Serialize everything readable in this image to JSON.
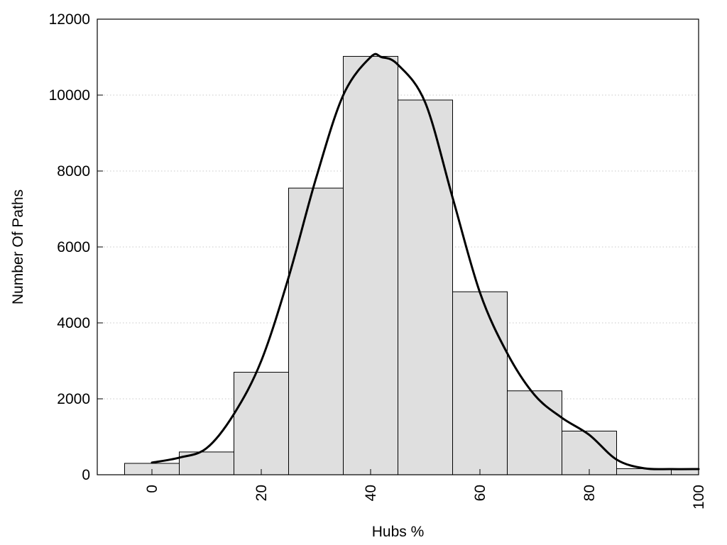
{
  "chart_data": {
    "type": "bar",
    "title": "",
    "xlabel": "Hubs %",
    "ylabel": "Number Of Paths",
    "xlim": [
      -10,
      100
    ],
    "ylim": [
      0,
      12000
    ],
    "x_ticks": [
      "0",
      "20",
      "40",
      "60",
      "80",
      "100"
    ],
    "y_ticks": [
      "0",
      "2000",
      "4000",
      "6000",
      "8000",
      "10000",
      "12000"
    ],
    "bar_width": 10,
    "bars": {
      "x": [
        0,
        10,
        20,
        30,
        40,
        50,
        60,
        70,
        80,
        90,
        100
      ],
      "values": [
        300,
        600,
        2700,
        7550,
        11020,
        9870,
        4820,
        2210,
        1150,
        160,
        150
      ]
    },
    "series": [
      {
        "type": "line",
        "x": [
          0,
          5,
          10,
          15,
          20,
          25,
          30,
          35,
          40,
          42,
          45,
          50,
          55,
          60,
          65,
          70,
          75,
          80,
          85,
          90,
          95,
          100
        ],
        "values": [
          320,
          450,
          700,
          1600,
          3000,
          5200,
          7800,
          10000,
          11000,
          11000,
          10800,
          9800,
          7300,
          4800,
          3200,
          2100,
          1500,
          1050,
          400,
          170,
          150,
          150
        ]
      }
    ],
    "grid": true,
    "colors": {
      "bar_fill": "#dfdfdf",
      "bar_stroke": "#000000",
      "line": "#000000",
      "grid": "#c8c8c8"
    }
  }
}
